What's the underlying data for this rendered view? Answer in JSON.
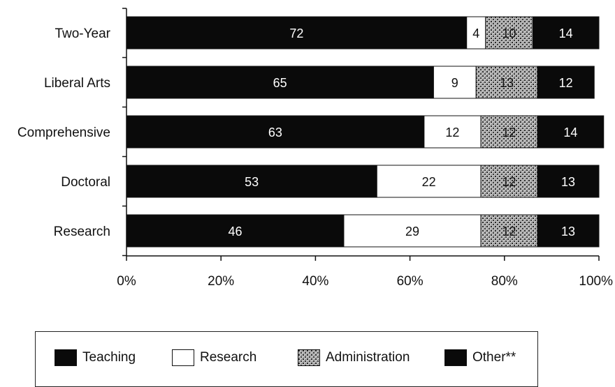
{
  "chart_data": {
    "type": "bar",
    "orientation": "horizontal",
    "stacked": true,
    "categories": [
      "Two-Year",
      "Liberal Arts",
      "Comprehensive",
      "Doctoral",
      "Research"
    ],
    "series": [
      {
        "name": "Teaching",
        "values": [
          72,
          65,
          63,
          53,
          46
        ],
        "color": "#0a0a0a"
      },
      {
        "name": "Research",
        "values": [
          4,
          9,
          12,
          22,
          29
        ],
        "color": "#ffffff"
      },
      {
        "name": "Administration",
        "values": [
          10,
          13,
          12,
          12,
          12
        ],
        "color": "#9a9a9a"
      },
      {
        "name": "Other**",
        "values": [
          14,
          12,
          14,
          13,
          13
        ],
        "color": "#0a0a0a"
      }
    ],
    "data_labels": [
      [
        "72",
        "4",
        "10",
        "14"
      ],
      [
        "65",
        "9",
        "13",
        "12"
      ],
      [
        "63",
        "12",
        "12",
        "14"
      ],
      [
        "53",
        "22",
        "12",
        "13"
      ],
      [
        "46",
        "29",
        "12",
        "13"
      ]
    ],
    "xticks": [
      "0%",
      "20%",
      "40%",
      "60%",
      "80%",
      "100%"
    ],
    "xlim": [
      0,
      100
    ],
    "legend_position": "bottom"
  },
  "legend": {
    "items": [
      {
        "label": "Teaching",
        "color": "#0a0a0a",
        "pattern": "solid"
      },
      {
        "label": "Research",
        "color": "#ffffff",
        "pattern": "solid"
      },
      {
        "label": "Administration",
        "color": "#9a9a9a",
        "pattern": "stipple"
      },
      {
        "label": "Other**",
        "color": "#0a0a0a",
        "pattern": "solid"
      }
    ]
  }
}
